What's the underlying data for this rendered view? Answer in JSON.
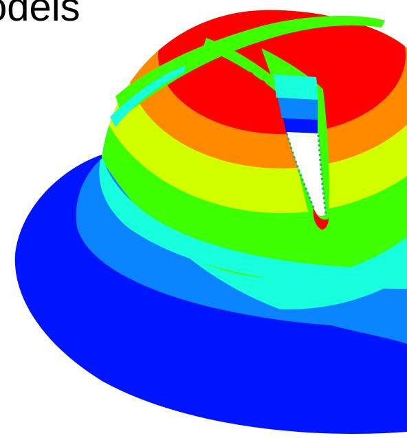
{
  "title_fragment": "odels",
  "colors": {
    "base": "#0015ff",
    "blue": "#0a84ff",
    "cyan": "#18ffdd",
    "green": "#3cff00",
    "yellow": "#d2ff00",
    "orange": "#ff8a00",
    "red": "#ff0000",
    "highlight": "#ffffff",
    "mesh": "#22aa88"
  }
}
